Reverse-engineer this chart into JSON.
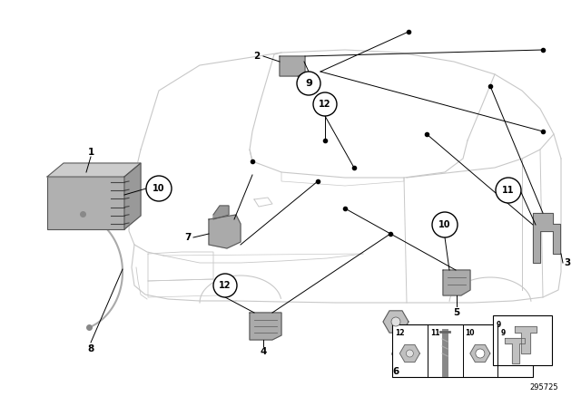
{
  "bg_color": "#ffffff",
  "part_number": "295725",
  "fig_width": 6.4,
  "fig_height": 4.48,
  "car_color": "#c8c8c8",
  "parts_color": "#888888",
  "line_color": "#000000",
  "lw_car": 0.8,
  "lw_line": 0.7,
  "label_font_size": 7.5,
  "circle_font_size": 7
}
